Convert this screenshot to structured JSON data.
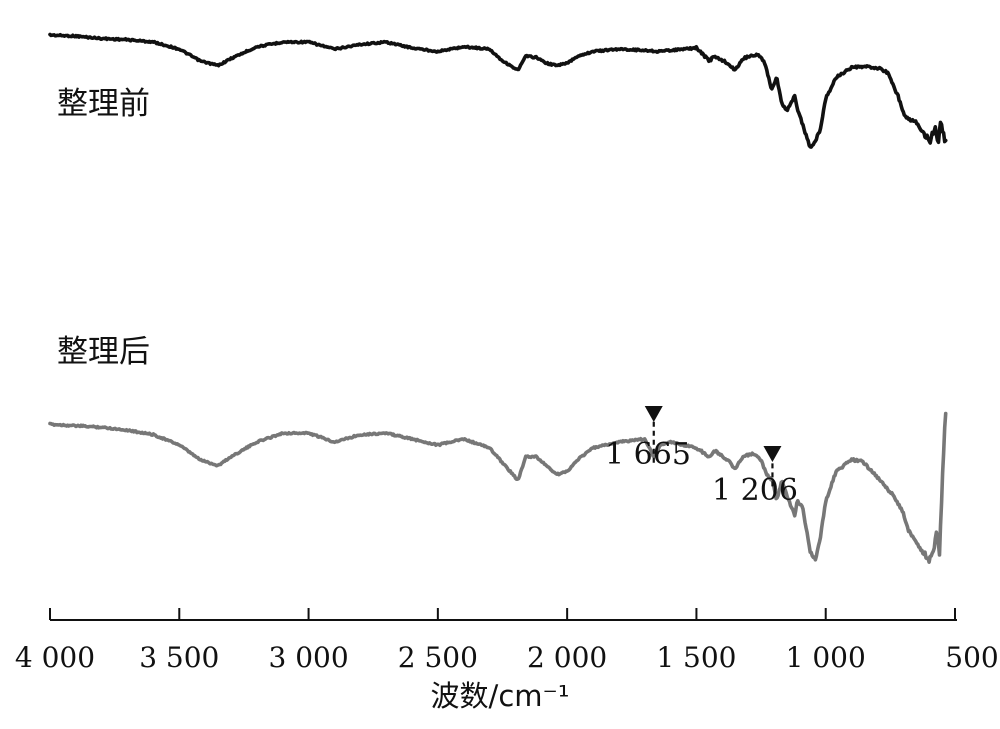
{
  "chart_data": {
    "type": "line",
    "xlabel": "波数/cm⁻¹",
    "ylabel": "",
    "xlim": [
      4000,
      500
    ],
    "x_reversed": true,
    "y_ticks_shown": false,
    "grid": false,
    "legend": "none",
    "x_ticks": [
      {
        "value": 4000,
        "label": "4 000"
      },
      {
        "value": 3500,
        "label": "3 500"
      },
      {
        "value": 3000,
        "label": "3 000"
      },
      {
        "value": 2500,
        "label": "2 500"
      },
      {
        "value": 2000,
        "label": "2 000"
      },
      {
        "value": 1500,
        "label": "1 500"
      },
      {
        "value": 1000,
        "label": "1 000"
      },
      {
        "value": 500,
        "label": "500"
      }
    ],
    "series": [
      {
        "name": "整理前",
        "color": "#111111",
        "points": [
          [
            4000,
            0.0
          ],
          [
            3900,
            0.5
          ],
          [
            3800,
            1.5
          ],
          [
            3700,
            2.0
          ],
          [
            3600,
            3.0
          ],
          [
            3500,
            6.0
          ],
          [
            3420,
            11.0
          ],
          [
            3350,
            13.0
          ],
          [
            3300,
            10.0
          ],
          [
            3200,
            5.0
          ],
          [
            3100,
            3.0
          ],
          [
            3000,
            3.0
          ],
          [
            2900,
            6.0
          ],
          [
            2800,
            4.0
          ],
          [
            2700,
            3.0
          ],
          [
            2600,
            5.5
          ],
          [
            2500,
            7.0
          ],
          [
            2400,
            5.0
          ],
          [
            2300,
            6.0
          ],
          [
            2250,
            11.0
          ],
          [
            2190,
            15.0
          ],
          [
            2160,
            9.0
          ],
          [
            2120,
            9.5
          ],
          [
            2080,
            12.0
          ],
          [
            2040,
            13.0
          ],
          [
            2000,
            12.0
          ],
          [
            1960,
            9.0
          ],
          [
            1900,
            7.0
          ],
          [
            1800,
            6.0
          ],
          [
            1700,
            6.5
          ],
          [
            1650,
            7.0
          ],
          [
            1600,
            6.5
          ],
          [
            1500,
            5.5
          ],
          [
            1450,
            11.0
          ],
          [
            1430,
            9.0
          ],
          [
            1380,
            12.0
          ],
          [
            1350,
            15.0
          ],
          [
            1320,
            10.0
          ],
          [
            1280,
            8.5
          ],
          [
            1250,
            9.0
          ],
          [
            1230,
            14.0
          ],
          [
            1210,
            23.0
          ],
          [
            1190,
            18.0
          ],
          [
            1170,
            29.0
          ],
          [
            1150,
            32.0
          ],
          [
            1120,
            26.0
          ],
          [
            1110,
            31.0
          ],
          [
            1090,
            38.0
          ],
          [
            1060,
            48.0
          ],
          [
            1040,
            45.0
          ],
          [
            1020,
            40.0
          ],
          [
            1000,
            27.0
          ],
          [
            960,
            18.0
          ],
          [
            900,
            14.0
          ],
          [
            850,
            13.5
          ],
          [
            800,
            14.0
          ],
          [
            760,
            16.0
          ],
          [
            720,
            26.0
          ],
          [
            700,
            33.0
          ],
          [
            680,
            36.0
          ],
          [
            650,
            37.0
          ],
          [
            620,
            42.0
          ],
          [
            600,
            46.0
          ],
          [
            585,
            42.0
          ],
          [
            575,
            39.0
          ],
          [
            565,
            48.0
          ],
          [
            555,
            35.0
          ],
          [
            545,
            42.0
          ],
          [
            535,
            46.0
          ]
        ]
      },
      {
        "name": "整理后",
        "color": "#777777",
        "points": [
          [
            4000,
            54.0
          ],
          [
            3900,
            54.5
          ],
          [
            3800,
            55.0
          ],
          [
            3700,
            56.0
          ],
          [
            3600,
            57.5
          ],
          [
            3500,
            61.0
          ],
          [
            3420,
            66.0
          ],
          [
            3350,
            68.0
          ],
          [
            3300,
            65.0
          ],
          [
            3200,
            60.0
          ],
          [
            3100,
            57.0
          ],
          [
            3000,
            57.0
          ],
          [
            2900,
            60.0
          ],
          [
            2800,
            57.5
          ],
          [
            2700,
            57.0
          ],
          [
            2600,
            59.0
          ],
          [
            2500,
            61.0
          ],
          [
            2400,
            59.0
          ],
          [
            2300,
            62.0
          ],
          [
            2250,
            67.0
          ],
          [
            2190,
            73.0
          ],
          [
            2160,
            65.0
          ],
          [
            2120,
            65.0
          ],
          [
            2080,
            68.0
          ],
          [
            2040,
            71.0
          ],
          [
            2000,
            70.0
          ],
          [
            1960,
            66.0
          ],
          [
            1900,
            62.0
          ],
          [
            1800,
            60.0
          ],
          [
            1700,
            59.0
          ],
          [
            1665,
            65.0
          ],
          [
            1640,
            61.0
          ],
          [
            1600,
            60.0
          ],
          [
            1500,
            62.0
          ],
          [
            1450,
            65.0
          ],
          [
            1430,
            63.0
          ],
          [
            1380,
            66.0
          ],
          [
            1350,
            69.0
          ],
          [
            1320,
            65.0
          ],
          [
            1280,
            64.0
          ],
          [
            1250,
            66.0
          ],
          [
            1230,
            71.0
          ],
          [
            1206,
            73.0
          ],
          [
            1190,
            80.0
          ],
          [
            1170,
            73.0
          ],
          [
            1150,
            78.0
          ],
          [
            1120,
            85.0
          ],
          [
            1110,
            80.0
          ],
          [
            1090,
            82.0
          ],
          [
            1060,
            97.0
          ],
          [
            1040,
            100.0
          ],
          [
            1020,
            92.0
          ],
          [
            1000,
            80.0
          ],
          [
            960,
            70.0
          ],
          [
            900,
            66.0
          ],
          [
            860,
            66.5
          ],
          [
            820,
            70.0
          ],
          [
            780,
            74.0
          ],
          [
            740,
            78.0
          ],
          [
            700,
            84.0
          ],
          [
            680,
            90.0
          ],
          [
            650,
            94.0
          ],
          [
            620,
            98.0
          ],
          [
            600,
            100.0
          ],
          [
            585,
            97.0
          ],
          [
            570,
            91.0
          ],
          [
            560,
            98.0
          ],
          [
            550,
            75.0
          ],
          [
            540,
            55.0
          ],
          [
            535,
            50.0
          ]
        ]
      }
    ],
    "annotations": [
      {
        "label": "1 665",
        "x": 1665,
        "series": "整理后"
      },
      {
        "label": "1 206",
        "x": 1206,
        "series": "整理后"
      }
    ]
  }
}
